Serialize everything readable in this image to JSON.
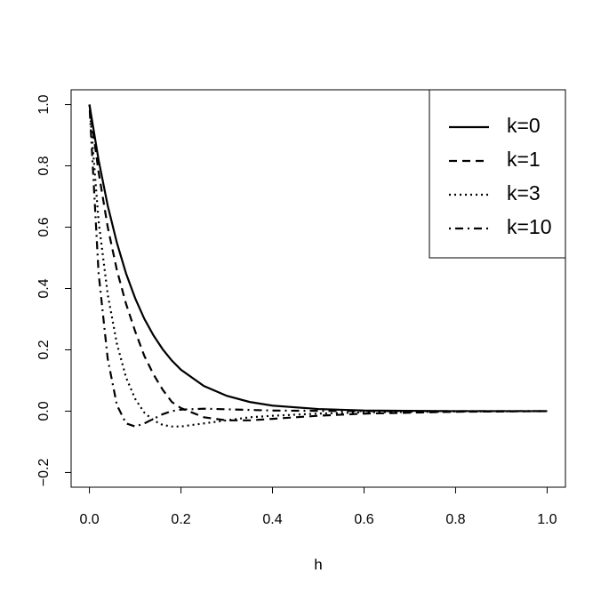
{
  "chart_data": {
    "type": "line",
    "x_label": "h",
    "x": [
      0,
      0.02,
      0.04,
      0.06,
      0.08,
      0.1,
      0.12,
      0.14,
      0.16,
      0.18,
      0.2,
      0.25,
      0.3,
      0.35,
      0.4,
      0.5,
      0.6,
      0.8,
      1.0
    ],
    "series": [
      {
        "name": "k=0",
        "color": "#000000",
        "linestyle": "solid",
        "values": [
          1,
          0.819,
          0.67,
          0.549,
          0.449,
          0.368,
          0.301,
          0.247,
          0.202,
          0.165,
          0.135,
          0.082,
          0.05,
          0.03,
          0.018,
          0.007,
          0.002,
          0,
          0
        ]
      },
      {
        "name": "k=1",
        "color": "#000000",
        "linestyle": "dashed",
        "values": [
          1,
          0.78,
          0.6,
          0.46,
          0.35,
          0.26,
          0.18,
          0.12,
          0.07,
          0.03,
          0.01,
          -0.02,
          -0.03,
          -0.03,
          -0.025,
          -0.015,
          -0.008,
          -0.002,
          0
        ]
      },
      {
        "name": "k=3",
        "color": "#000000",
        "linestyle": "dotted",
        "values": [
          1,
          0.62,
          0.38,
          0.22,
          0.11,
          0.04,
          -0.005,
          -0.03,
          -0.045,
          -0.05,
          -0.05,
          -0.04,
          -0.03,
          -0.02,
          -0.015,
          -0.008,
          -0.004,
          -0.001,
          0
        ]
      },
      {
        "name": "k=10",
        "color": "#000000",
        "linestyle": "dotdash",
        "values": [
          1,
          0.45,
          0.17,
          0.02,
          -0.04,
          -0.05,
          -0.04,
          -0.025,
          -0.01,
          0,
          0.005,
          0.008,
          0.006,
          0.004,
          0.002,
          0.001,
          0,
          0,
          0
        ]
      }
    ],
    "xlim": [
      -0.04,
      1.04
    ],
    "xticks": [
      {
        "value": 0,
        "label": "0.0"
      },
      0.2,
      0.4,
      0.6,
      0.8,
      {
        "value": 1,
        "label": "1.0"
      }
    ],
    "ylim": [
      -0.248,
      1.048
    ],
    "yticks": [
      {
        "value": -0.2,
        "label": "−0.2"
      },
      {
        "value": 0,
        "label": "0.0"
      },
      0.2,
      0.4,
      0.6,
      0.8,
      {
        "value": 1,
        "label": "1.0"
      }
    ],
    "legend": "top-right",
    "grid": false
  }
}
